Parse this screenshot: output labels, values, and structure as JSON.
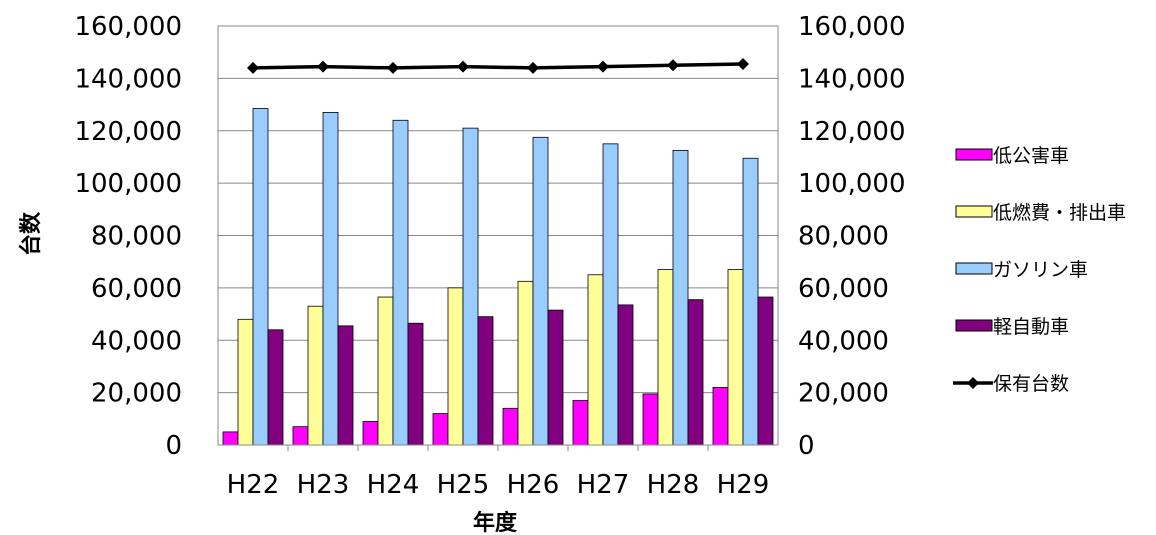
{
  "chart_data": {
    "type": "bar",
    "categories": [
      "H22",
      "H23",
      "H24",
      "H25",
      "H26",
      "H27",
      "H28",
      "H29"
    ],
    "xlabel": "年度",
    "ylabel": "台数",
    "ylim": [
      0,
      160000
    ],
    "yticks": [
      "0",
      "20,000",
      "40,000",
      "60,000",
      "80,000",
      "100,000",
      "120,000",
      "140,000",
      "160,000"
    ],
    "y2ticks": [
      "0",
      "20,000",
      "40,000",
      "60,000",
      "80,000",
      "100,000",
      "120,000",
      "140,000",
      "160,000"
    ],
    "grid": true,
    "legend_position": "right",
    "series": [
      {
        "name": "低公害車",
        "type": "bar",
        "color": "#ff00ff",
        "values": [
          5000,
          7000,
          9000,
          12000,
          14000,
          17000,
          19500,
          22000
        ]
      },
      {
        "name": "低燃費・排出車",
        "type": "bar",
        "color": "#ffff99",
        "values": [
          48000,
          53000,
          56500,
          60000,
          62500,
          65000,
          67000,
          67000
        ]
      },
      {
        "name": "ガソリン車",
        "type": "bar",
        "color": "#99ccff",
        "values": [
          128500,
          127000,
          124000,
          121000,
          117500,
          115000,
          112500,
          109500
        ]
      },
      {
        "name": "軽自動車",
        "type": "bar",
        "color": "#800080",
        "values": [
          44000,
          45500,
          46500,
          49000,
          51500,
          53500,
          55500,
          56500
        ]
      },
      {
        "name": "保有台数",
        "type": "line",
        "color": "#000000",
        "values": [
          144000,
          144500,
          144000,
          144500,
          144000,
          144500,
          145000,
          145500
        ]
      }
    ]
  }
}
